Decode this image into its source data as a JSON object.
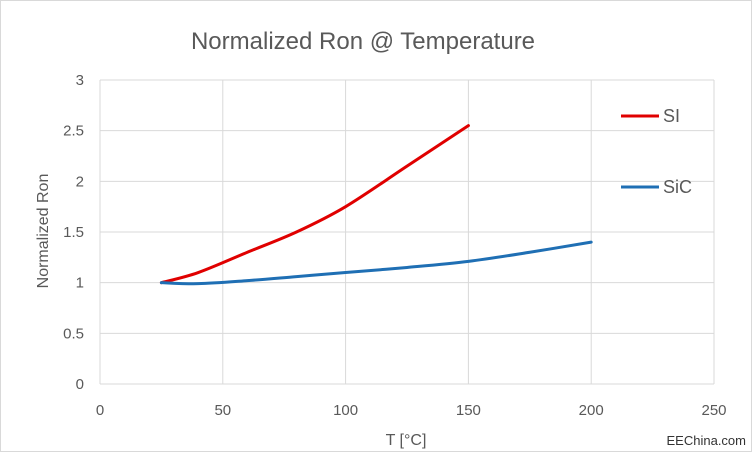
{
  "chart_data": {
    "type": "line",
    "title": "Normalized Ron @ Temperature",
    "xlabel": "T [°C]",
    "ylabel": "Normalized Ron",
    "xlim": [
      0,
      250
    ],
    "ylim": [
      0,
      3
    ],
    "x_ticks": [
      0,
      50,
      100,
      150,
      200,
      250
    ],
    "y_ticks": [
      0,
      0.5,
      1,
      1.5,
      2,
      2.5,
      3
    ],
    "grid": "vertical and horizontal",
    "legend_position": "right",
    "series": [
      {
        "name": "SI",
        "color": "#e00000",
        "x": [
          25,
          40,
          60,
          80,
          100,
          125,
          150
        ],
        "y": [
          1.0,
          1.1,
          1.3,
          1.5,
          1.75,
          2.15,
          2.55
        ]
      },
      {
        "name": "SiC",
        "color": "#1f6fb4",
        "x": [
          25,
          40,
          60,
          80,
          100,
          125,
          150,
          175,
          200
        ],
        "y": [
          1.0,
          0.99,
          1.02,
          1.06,
          1.1,
          1.15,
          1.21,
          1.3,
          1.4
        ]
      }
    ]
  },
  "watermark": "EEChina.com",
  "grid_color": "#d9d9d9",
  "text_color": "#595959"
}
